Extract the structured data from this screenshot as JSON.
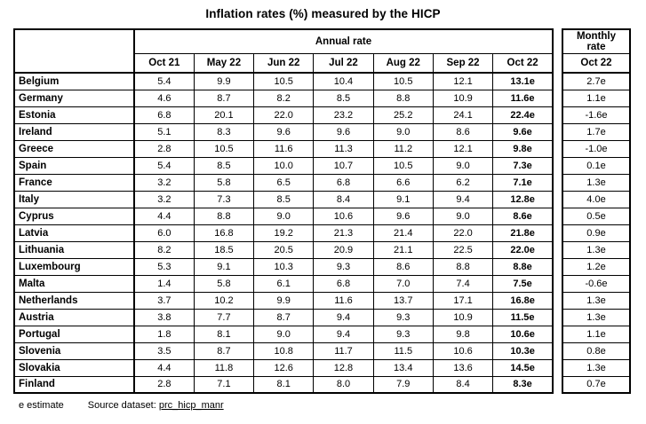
{
  "title": "Inflation rates (%) measured by the HICP",
  "table": {
    "annual_rate_label": "Annual rate",
    "monthly_rate_lines": [
      "Monthly",
      "rate"
    ],
    "annual_columns": [
      "Oct 21",
      "May 22",
      "Jun 22",
      "Jul 22",
      "Aug 22",
      "Sep 22",
      "Oct 22"
    ],
    "monthly_column": "Oct 22",
    "rows": [
      {
        "country": "Belgium",
        "values": [
          "5.4",
          "9.9",
          "10.5",
          "10.4",
          "10.5",
          "12.1",
          "13.1e"
        ],
        "monthly": "2.7e"
      },
      {
        "country": "Germany",
        "values": [
          "4.6",
          "8.7",
          "8.2",
          "8.5",
          "8.8",
          "10.9",
          "11.6e"
        ],
        "monthly": "1.1e"
      },
      {
        "country": "Estonia",
        "values": [
          "6.8",
          "20.1",
          "22.0",
          "23.2",
          "25.2",
          "24.1",
          "22.4e"
        ],
        "monthly": "-1.6e"
      },
      {
        "country": "Ireland",
        "values": [
          "5.1",
          "8.3",
          "9.6",
          "9.6",
          "9.0",
          "8.6",
          "9.6e"
        ],
        "monthly": "1.7e"
      },
      {
        "country": "Greece",
        "values": [
          "2.8",
          "10.5",
          "11.6",
          "11.3",
          "11.2",
          "12.1",
          "9.8e"
        ],
        "monthly": "-1.0e"
      },
      {
        "country": "Spain",
        "values": [
          "5.4",
          "8.5",
          "10.0",
          "10.7",
          "10.5",
          "9.0",
          "7.3e"
        ],
        "monthly": "0.1e"
      },
      {
        "country": "France",
        "values": [
          "3.2",
          "5.8",
          "6.5",
          "6.8",
          "6.6",
          "6.2",
          "7.1e"
        ],
        "monthly": "1.3e"
      },
      {
        "country": "Italy",
        "values": [
          "3.2",
          "7.3",
          "8.5",
          "8.4",
          "9.1",
          "9.4",
          "12.8e"
        ],
        "monthly": "4.0e"
      },
      {
        "country": "Cyprus",
        "values": [
          "4.4",
          "8.8",
          "9.0",
          "10.6",
          "9.6",
          "9.0",
          "8.6e"
        ],
        "monthly": "0.5e"
      },
      {
        "country": "Latvia",
        "values": [
          "6.0",
          "16.8",
          "19.2",
          "21.3",
          "21.4",
          "22.0",
          "21.8e"
        ],
        "monthly": "0.9e"
      },
      {
        "country": "Lithuania",
        "values": [
          "8.2",
          "18.5",
          "20.5",
          "20.9",
          "21.1",
          "22.5",
          "22.0e"
        ],
        "monthly": "1.3e"
      },
      {
        "country": "Luxembourg",
        "values": [
          "5.3",
          "9.1",
          "10.3",
          "9.3",
          "8.6",
          "8.8",
          "8.8e"
        ],
        "monthly": "1.2e"
      },
      {
        "country": "Malta",
        "values": [
          "1.4",
          "5.8",
          "6.1",
          "6.8",
          "7.0",
          "7.4",
          "7.5e"
        ],
        "monthly": "-0.6e"
      },
      {
        "country": "Netherlands",
        "values": [
          "3.7",
          "10.2",
          "9.9",
          "11.6",
          "13.7",
          "17.1",
          "16.8e"
        ],
        "monthly": "1.3e"
      },
      {
        "country": "Austria",
        "values": [
          "3.8",
          "7.7",
          "8.7",
          "9.4",
          "9.3",
          "10.9",
          "11.5e"
        ],
        "monthly": "1.3e"
      },
      {
        "country": "Portugal",
        "values": [
          "1.8",
          "8.1",
          "9.0",
          "9.4",
          "9.3",
          "9.8",
          "10.6e"
        ],
        "monthly": "1.1e"
      },
      {
        "country": "Slovenia",
        "values": [
          "3.5",
          "8.7",
          "10.8",
          "11.7",
          "11.5",
          "10.6",
          "10.3e"
        ],
        "monthly": "0.8e"
      },
      {
        "country": "Slovakia",
        "values": [
          "4.4",
          "11.8",
          "12.6",
          "12.8",
          "13.4",
          "13.6",
          "14.5e"
        ],
        "monthly": "1.3e"
      },
      {
        "country": "Finland",
        "values": [
          "2.8",
          "7.1",
          "8.1",
          "8.0",
          "7.9",
          "8.4",
          "8.3e"
        ],
        "monthly": "0.7e"
      }
    ]
  },
  "footer": {
    "estimate_note": "e estimate",
    "source_label": "Source dataset:",
    "source_link": "prc_hicp_manr"
  },
  "colors": {
    "text": "#000000",
    "border": "#000000",
    "background": "#ffffff"
  }
}
